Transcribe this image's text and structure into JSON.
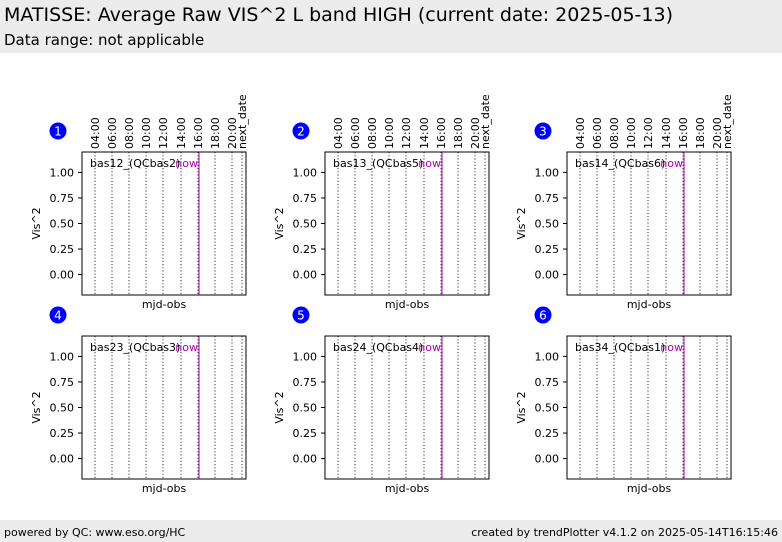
{
  "header": {
    "title": "MATISSE: Average Raw VIS^2 L band HIGH (current date: 2025-05-13)",
    "subtitle": "Data range: not applicable"
  },
  "footer": {
    "left": "powered by QC: www.eso.org/HC",
    "right": "created by trendPlotter v4.1.2 on 2025-05-14T16:15:46"
  },
  "colors": {
    "badge": "#0000ff",
    "now_line": "#aa00aa",
    "header_bg": "#ececec"
  },
  "chart_data": [
    {
      "type": "line",
      "panel_number": "1",
      "label": "bas12_(QCbas2)",
      "now_label": "now",
      "xlabel": "mjd-obs",
      "ylabel": "Vis^2",
      "yticks": [
        "1.00",
        "0.75",
        "0.50",
        "0.25",
        "0.00"
      ],
      "ylim": [
        -0.2,
        1.2
      ],
      "xticks": [
        "04:00",
        "06:00",
        "08:00",
        "10:00",
        "12:00",
        "14:00",
        "16:00",
        "18:00",
        "20:00",
        "next_date"
      ],
      "grid": true,
      "series": []
    },
    {
      "type": "line",
      "panel_number": "2",
      "label": "bas13_(QCbas5)",
      "now_label": "now",
      "xlabel": "mjd-obs",
      "ylabel": "Vis^2",
      "yticks": [
        "1.00",
        "0.75",
        "0.50",
        "0.25",
        "0.00"
      ],
      "ylim": [
        -0.2,
        1.2
      ],
      "xticks": [
        "04:00",
        "06:00",
        "08:00",
        "10:00",
        "12:00",
        "14:00",
        "16:00",
        "18:00",
        "20:00",
        "next_date"
      ],
      "grid": true,
      "series": []
    },
    {
      "type": "line",
      "panel_number": "3",
      "label": "bas14_(QCbas6)",
      "now_label": "now",
      "xlabel": "mjd-obs",
      "ylabel": "Vis^2",
      "yticks": [
        "1.00",
        "0.75",
        "0.50",
        "0.25",
        "0.00"
      ],
      "ylim": [
        -0.2,
        1.2
      ],
      "xticks": [
        "04:00",
        "06:00",
        "08:00",
        "10:00",
        "12:00",
        "14:00",
        "16:00",
        "18:00",
        "20:00",
        "next_date"
      ],
      "grid": true,
      "series": []
    },
    {
      "type": "line",
      "panel_number": "4",
      "label": "bas23_(QCbas3)",
      "now_label": "now",
      "xlabel": "mjd-obs",
      "ylabel": "Vis^2",
      "yticks": [
        "1.00",
        "0.75",
        "0.50",
        "0.25",
        "0.00"
      ],
      "ylim": [
        -0.2,
        1.2
      ],
      "xticks": [],
      "grid": true,
      "series": []
    },
    {
      "type": "line",
      "panel_number": "5",
      "label": "bas24_(QCbas4)",
      "now_label": "now",
      "xlabel": "mjd-obs",
      "ylabel": "Vis^2",
      "yticks": [
        "1.00",
        "0.75",
        "0.50",
        "0.25",
        "0.00"
      ],
      "ylim": [
        -0.2,
        1.2
      ],
      "xticks": [],
      "grid": true,
      "series": []
    },
    {
      "type": "line",
      "panel_number": "6",
      "label": "bas34_(QCbas1)",
      "now_label": "now",
      "xlabel": "mjd-obs",
      "ylabel": "Vis^2",
      "yticks": [
        "1.00",
        "0.75",
        "0.50",
        "0.25",
        "0.00"
      ],
      "ylim": [
        -0.2,
        1.2
      ],
      "xticks": [],
      "grid": true,
      "series": []
    }
  ]
}
